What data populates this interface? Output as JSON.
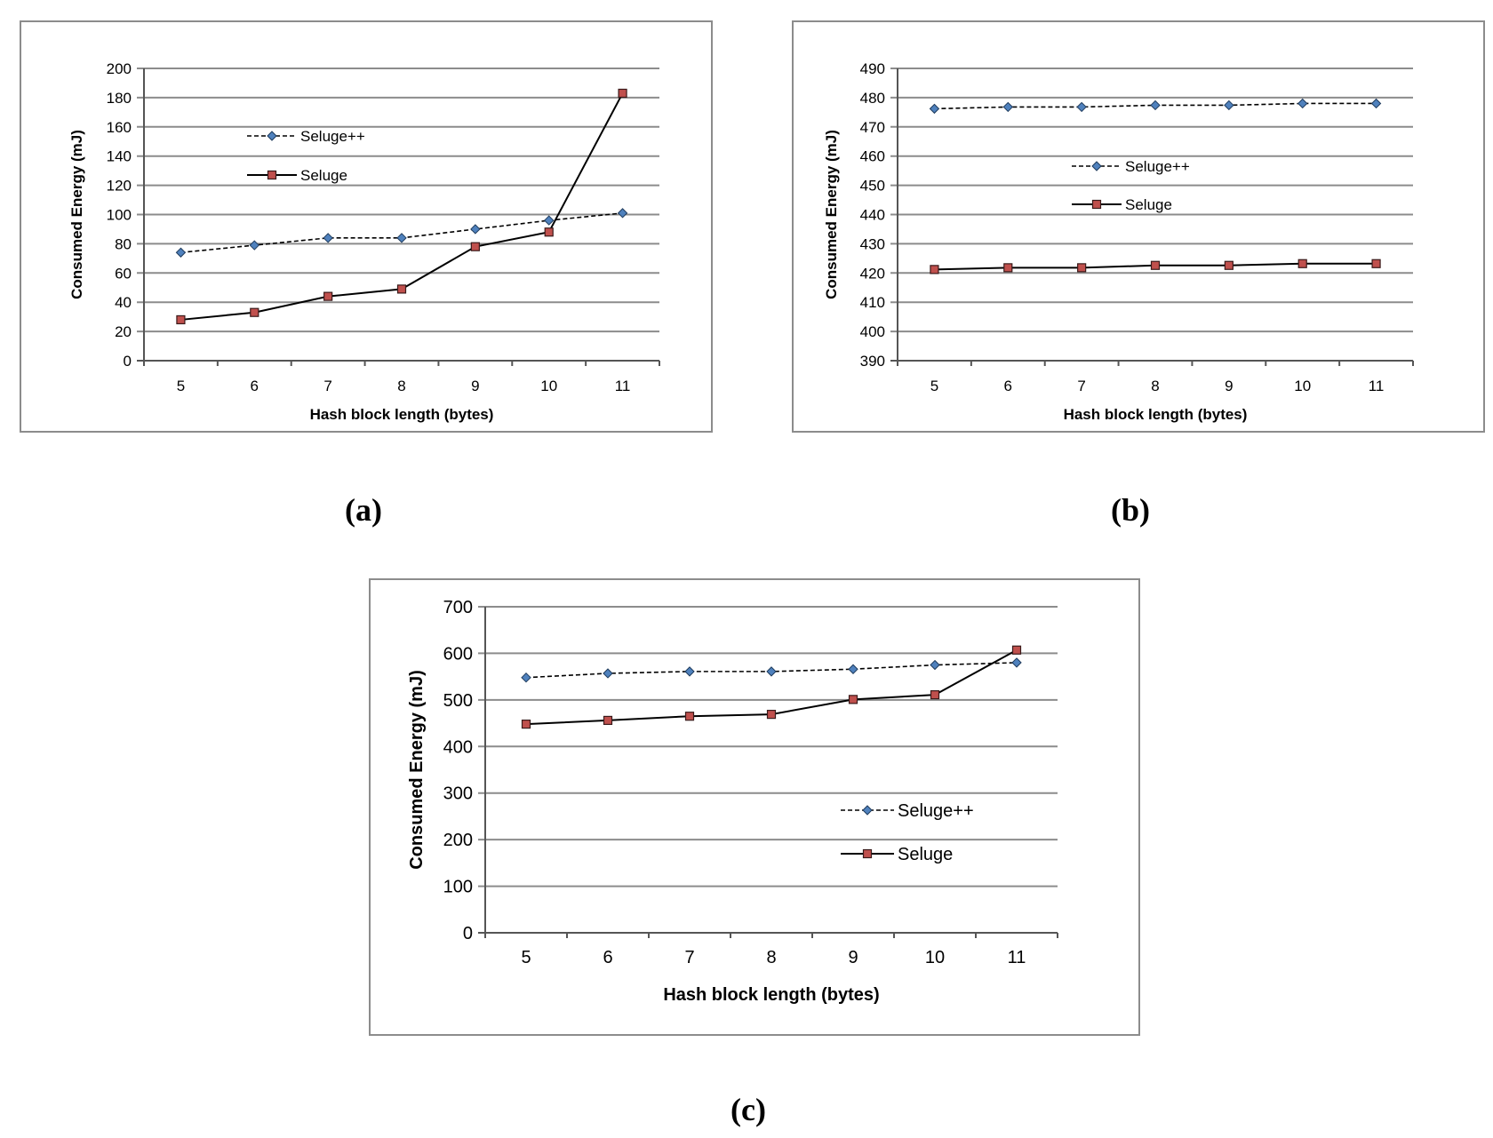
{
  "colors": {
    "frame": "#8c8c8c",
    "grid": "#8c8c8c",
    "seluge_plus_marker": "#4f81bd",
    "seluge_marker": "#c0504d",
    "line": "#000000"
  },
  "chart_data": [
    {
      "id": "a",
      "type": "line",
      "caption": "(a)",
      "title": "",
      "xlabel": "Hash block length (bytes)",
      "ylabel": "Consumed Energy (mJ)",
      "categories": [
        "5",
        "6",
        "7",
        "8",
        "9",
        "10",
        "11"
      ],
      "ylim": [
        0,
        200
      ],
      "ystep": 20,
      "yticks": [
        "0",
        "20",
        "40",
        "60",
        "80",
        "100",
        "120",
        "140",
        "160",
        "180",
        "200"
      ],
      "grid": true,
      "legend_position": "upper-middle",
      "series": [
        {
          "name": "Seluge++",
          "style": "dashed",
          "marker": "diamond",
          "values": [
            74,
            79,
            84,
            84,
            90,
            96,
            101
          ]
        },
        {
          "name": "Seluge",
          "style": "solid",
          "marker": "square",
          "values": [
            28,
            33,
            44,
            49,
            78,
            88,
            183
          ]
        }
      ]
    },
    {
      "id": "b",
      "type": "line",
      "caption": "(b)",
      "title": "",
      "xlabel": "Hash block length (bytes)",
      "ylabel": "Consumed Energy (mJ)",
      "categories": [
        "5",
        "6",
        "7",
        "8",
        "9",
        "10",
        "11"
      ],
      "ylim": [
        390,
        490
      ],
      "ystep": 10,
      "yticks": [
        "390",
        "400",
        "410",
        "420",
        "430",
        "440",
        "450",
        "460",
        "470",
        "480",
        "490"
      ],
      "grid": true,
      "legend_position": "middle-center",
      "series": [
        {
          "name": "Seluge++",
          "style": "dashed",
          "marker": "diamond",
          "values": [
            476.2,
            476.8,
            476.8,
            477.4,
            477.4,
            478.0,
            478.0
          ]
        },
        {
          "name": "Seluge",
          "style": "solid",
          "marker": "square",
          "values": [
            421.2,
            421.8,
            421.8,
            422.6,
            422.6,
            423.2,
            423.2
          ]
        }
      ]
    },
    {
      "id": "c",
      "type": "line",
      "caption": "(c)",
      "title": "",
      "xlabel": "Hash block length (bytes)",
      "ylabel": "Consumed Energy (mJ)",
      "categories": [
        "5",
        "6",
        "7",
        "8",
        "9",
        "10",
        "11"
      ],
      "ylim": [
        0,
        700
      ],
      "ystep": 100,
      "yticks": [
        "0",
        "100",
        "200",
        "300",
        "400",
        "500",
        "600",
        "700"
      ],
      "grid": true,
      "legend_position": "lower-right",
      "series": [
        {
          "name": "Seluge++",
          "style": "dashed",
          "marker": "diamond",
          "values": [
            548,
            557,
            561,
            561,
            566,
            575,
            580
          ]
        },
        {
          "name": "Seluge",
          "style": "solid",
          "marker": "square",
          "values": [
            448,
            456,
            465,
            469,
            501,
            511,
            607
          ]
        }
      ]
    }
  ]
}
